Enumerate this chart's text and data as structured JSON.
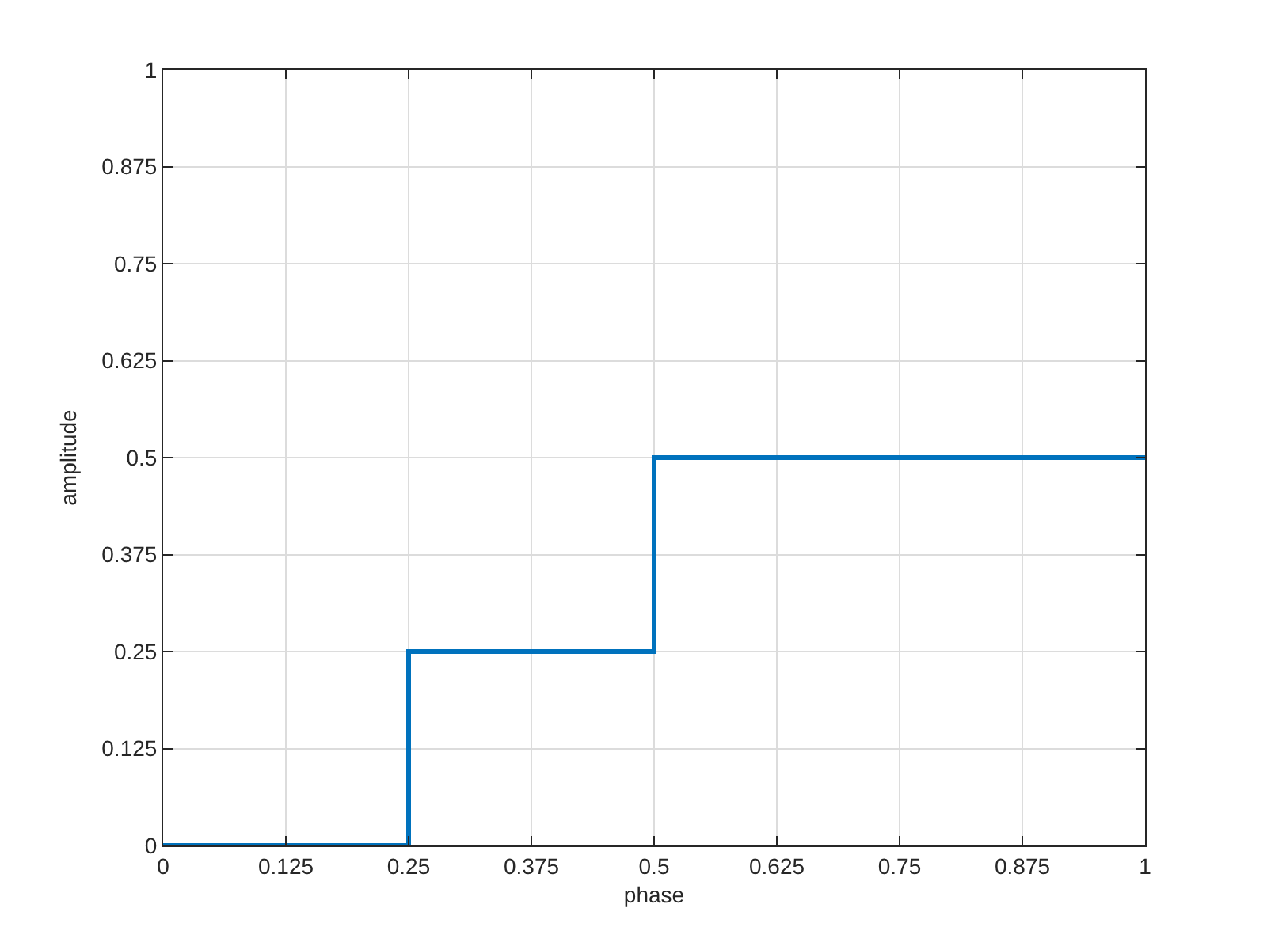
{
  "chart_data": {
    "type": "step",
    "xlabel": "phase",
    "ylabel": "amplitude",
    "x": [
      0,
      0.25,
      0.5,
      1
    ],
    "series": [
      {
        "color": "#0072bd",
        "values": [
          0,
          0.25,
          0.5,
          0.5
        ]
      }
    ],
    "xlim": [
      0,
      1
    ],
    "xticks": [
      0,
      0.125,
      0.25,
      0.375,
      0.5,
      0.625,
      0.75,
      0.875,
      1
    ],
    "ylim": [
      0,
      1
    ],
    "yticks": [
      0,
      0.125,
      0.25,
      0.375,
      0.5,
      0.625,
      0.75,
      0.875,
      1
    ],
    "grid": true,
    "marker": "none",
    "line_style": "solid"
  }
}
